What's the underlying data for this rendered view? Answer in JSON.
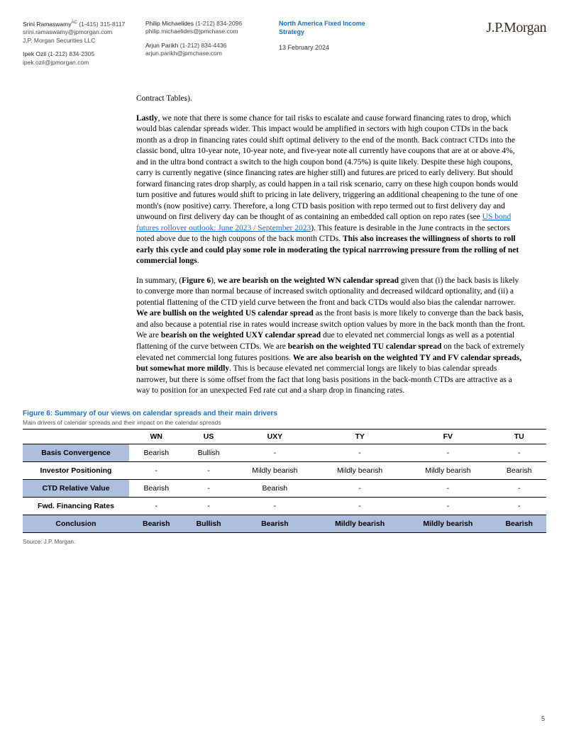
{
  "header": {
    "authors_col1": [
      {
        "name": "Srini Ramaswamy",
        "sup": "AC",
        "phone": "(1-415) 315-8117",
        "email": "srini.ramaswamy@jpmorgan.com",
        "org": "J.P. Morgan Securities LLC"
      },
      {
        "name": "Ipek Ozil",
        "sup": "",
        "phone": "(1-212) 834-2305",
        "email": "ipek.ozil@jpmorgan.com",
        "org": ""
      }
    ],
    "authors_col2": [
      {
        "name": "Philip Michaelides",
        "sup": "",
        "phone": "(1-212) 834-2096",
        "email": "philip.michaelides@jpmchase.com",
        "org": ""
      },
      {
        "name": "Arjun Parikh",
        "sup": "",
        "phone": "(1-212) 834-4436",
        "email": "arjun.parikh@jpmchase.com",
        "org": ""
      }
    ],
    "strategy_line1": "North America Fixed Income",
    "strategy_line2": "Strategy",
    "date": "13 February 2024",
    "logo": "J.P.Morgan"
  },
  "body": {
    "para0": "Contract Tables).",
    "para1_lead": "Lastly",
    "para1_rest": ", we note that there is some chance for tail risks to escalate and cause forward financing rates to drop, which would bias calendar spreads wider. This impact would be amplified in sectors with high coupon CTDs in the back month as a drop in financing rates could shift optimal delivery to the end of the month. Back contract CTDs into the classic bond, ultra 10-year note, 10-year note, and five-year note all currently have coupons that are at or above 4%, and in the ultra bond contract a switch to the high coupon bond (4.75%) is quite likely. Despite these high coupons, carry is currently negative (since financing rates are higher still) and futures are priced to early delivery. But should forward financing rates drop sharply, as could happen in a tail risk scenario, carry on these high coupon bonds would turn positive and futures would shift to pricing in late delivery, triggering an additional cheapening to the tune of one month's (now positive) carry. Therefore, a long CTD basis position with repo termed out to first delivery day and  unwound on first delivery day can be thought of as containing an embedded call option on repo rates (see ",
    "para1_link": "US bond futures rollover outlook: June 2023 / September 2023",
    "para1_afterlink": "). This feature is desirable in the June contracts in the sectors noted above due to the high coupons of the back month CTDs. ",
    "para1_bold": "This also increases the willingness of shorts to roll early this cycle and could play some role in moderating the typical narrrowing pressure from the rolling of net commercial longs",
    "para1_end": ".",
    "para2_a": "In summary, (",
    "para2_fig": "Figure 6",
    "para2_b": "), ",
    "para2_bold1": "we are bearish on the weighted WN calendar spread",
    "para2_c": " given that (i) the back basis is likely to converge more than normal because of increased switch optionality and decreased wildcard optionality, and (ii) a potential flattening of the CTD yield curve between the front and back CTDs would also bias the calendar narrower. ",
    "para2_bold2": "We are bullish on the weighted US calendar spread",
    "para2_d": " as the front basis is more likely to converge than the back basis, and also because a potential rise in rates would increase switch option values by more in the back month than the front. We are ",
    "para2_bold3": "bearish on the weighted UXY calendar spread",
    "para2_e": " due to elevated net commercial longs as well as a potential flattening of the curve between CTDs. We are ",
    "para2_bold4": "bearish on the weighted TU calendar spread",
    "para2_f": " on the back of extremely elevated net commercial long futures positions. ",
    "para2_bold5": "We are also bearish on the weighted TY and FV calendar spreads, but somewhat more mildly",
    "para2_g": ". This is because elevated net commercial longs are likely to bias calendar spreads narrower, but there is some offset from the fact that long basis positions in the back-month CTDs are attractive as a way to position for an unexpected Fed rate cut and a sharp drop in financing rates."
  },
  "figure": {
    "caption": "Figure 6: Summary of our views on calendar spreads and their main drivers",
    "subcaption": "Main drivers of calendar spreads and their impact on the calendar spreads",
    "columns": [
      "WN",
      "US",
      "UXY",
      "TY",
      "FV",
      "TU"
    ],
    "rows": [
      {
        "label": "Basis Convergence",
        "shaded": true,
        "cells": [
          "Bearish",
          "Bullish",
          "-",
          "-",
          "-",
          "-"
        ]
      },
      {
        "label": "Investor Positioning",
        "shaded": false,
        "cells": [
          "-",
          "-",
          "Mildly bearish",
          "Mildly bearish",
          "Mildly bearish",
          "Bearish"
        ]
      },
      {
        "label": "CTD Relative Value",
        "shaded": true,
        "cells": [
          "Bearish",
          "-",
          "Bearish",
          "-",
          "-",
          "-"
        ]
      },
      {
        "label": "Fwd. Financing Rates",
        "shaded": false,
        "cells": [
          "-",
          "-",
          "-",
          "-",
          "-",
          "-"
        ]
      }
    ],
    "conclusion": {
      "label": "Conclusion",
      "cells": [
        "Bearish",
        "Bullish",
        "Bearish",
        "Mildly bearish",
        "Mildly bearish",
        "Bearish"
      ]
    },
    "source": "Source: J.P. Morgan.",
    "colors": {
      "shaded_bg": "#aebfdd",
      "link": "#1a6ec1",
      "border": "#000000"
    }
  },
  "page_number": "5"
}
